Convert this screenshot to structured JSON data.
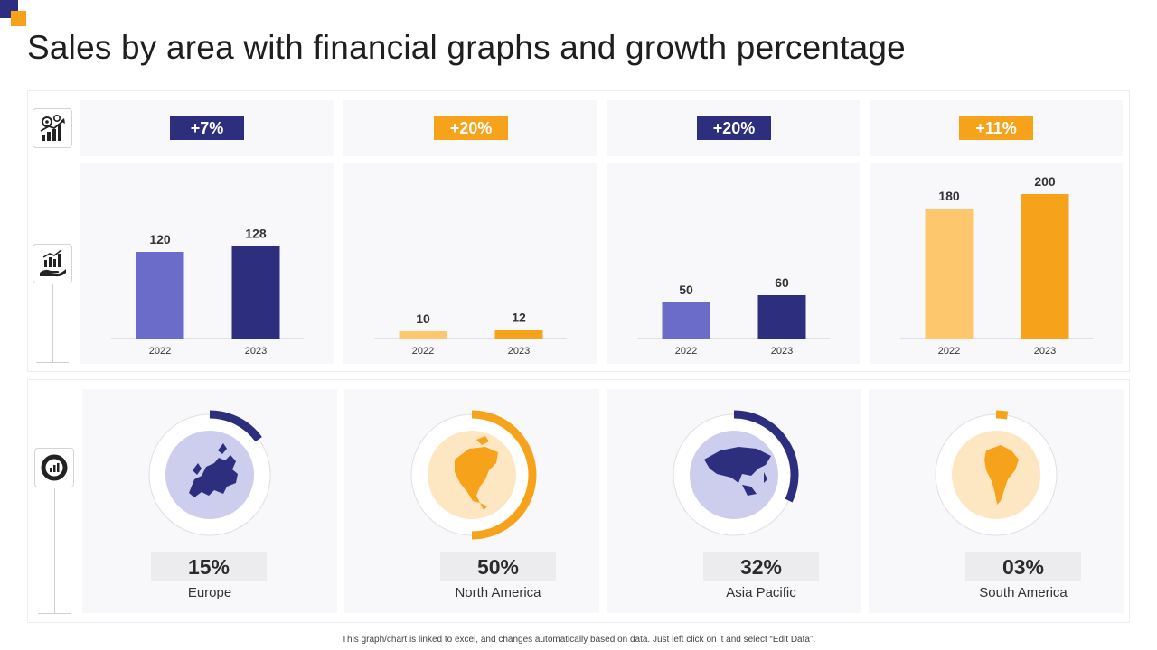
{
  "page": {
    "title": "Sales by area with financial graphs and growth percentage",
    "footnote": "This graph/chart is linked to excel, and changes automatically based on data. Just left click on it and select “Edit Data”."
  },
  "icons": {
    "growth": "gear-growth-chart-icon",
    "sales": "hand-chart-icon",
    "donut": "donut-chart-icon"
  },
  "colors": {
    "navy": "#2e2e7f",
    "blue": "#6b6bc9",
    "orange": "#f7a21b",
    "light_orange": "#fcc76d",
    "navy_pale": "#cdcdee",
    "orange_pale": "#fde7c2"
  },
  "chart_data": [
    {
      "type": "bar",
      "region": "Europe",
      "growth_label": "+7%",
      "categories": [
        "2022",
        "2023"
      ],
      "values": [
        120,
        128
      ],
      "colors": [
        "#6b6bc9",
        "#2e2e7f"
      ],
      "ylim": [
        0,
        200
      ]
    },
    {
      "type": "bar",
      "region": "North America",
      "growth_label": "+20%",
      "categories": [
        "2022",
        "2023"
      ],
      "values": [
        10,
        12
      ],
      "colors": [
        "#fcc76d",
        "#f7a21b"
      ],
      "ylim": [
        0,
        200
      ]
    },
    {
      "type": "bar",
      "region": "Asia Pacific",
      "growth_label": "+20%",
      "categories": [
        "2022",
        "2023"
      ],
      "values": [
        50,
        60
      ],
      "colors": [
        "#6b6bc9",
        "#2e2e7f"
      ],
      "ylim": [
        0,
        200
      ]
    },
    {
      "type": "bar",
      "region": "South America",
      "growth_label": "+11%",
      "categories": [
        "2022",
        "2023"
      ],
      "values": [
        180,
        200
      ],
      "colors": [
        "#fcc76d",
        "#f7a21b"
      ],
      "ylim": [
        0,
        200
      ]
    },
    {
      "type": "pie",
      "gauges": [
        {
          "region": "Europe",
          "label": "15%",
          "value": 15,
          "color": "#2e2e7f",
          "fill": "#cdcdee",
          "map_icon": "europe-map-icon"
        },
        {
          "region": "North America",
          "label": "50%",
          "value": 50,
          "color": "#f7a21b",
          "fill": "#fde7c2",
          "map_icon": "north-america-map-icon"
        },
        {
          "region": "Asia Pacific",
          "label": "32%",
          "value": 32,
          "color": "#2e2e7f",
          "fill": "#cdcdee",
          "map_icon": "asia-map-icon"
        },
        {
          "region": "South America",
          "label": "03%",
          "value": 3,
          "color": "#f7a21b",
          "fill": "#fde7c2",
          "map_icon": "south-america-map-icon"
        }
      ]
    }
  ]
}
